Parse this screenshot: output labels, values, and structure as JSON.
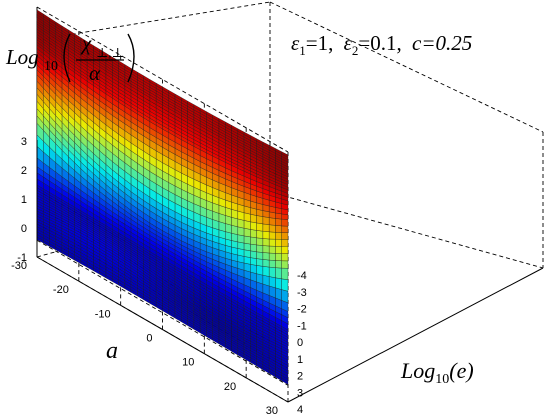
{
  "chart_data": {
    "type": "surface",
    "colormap": "jet",
    "zlabel": {
      "prefix": "Log",
      "subscript": "10",
      "numerator": "χ",
      "numerator_subscript": "⊥,⊥",
      "denominator": "α"
    },
    "annotation": {
      "e1_symbol": "ε",
      "e1_sub": "1",
      "e1_val": "=1,",
      "e2_symbol": "ε",
      "e2_sub": "2",
      "e2_val": "=0.1,",
      "c_text": "c=0.25"
    },
    "xlabel": "a",
    "ylabel": {
      "prefix": "Log",
      "subscript": "10",
      "arg": "(e)"
    },
    "x_ticks": [
      "-30",
      "-20",
      "-10",
      "0",
      "10",
      "20",
      "30"
    ],
    "y_ticks": [
      "-4",
      "-3",
      "-2",
      "-1",
      "0",
      "1",
      "2",
      "3",
      "4"
    ],
    "z_ticks": [
      "-1",
      "0",
      "1",
      "2",
      "3"
    ],
    "xlim": [
      -30,
      30
    ],
    "ylim": [
      -4,
      4
    ],
    "zlim": [
      -1,
      3
    ],
    "grid": true,
    "surface_profile": {
      "log10_e": [
        4,
        2,
        1,
        0.5,
        0,
        -0.5,
        -1,
        -1.5,
        -2,
        -3,
        -4
      ],
      "z_at_a0": [
        -0.35,
        -0.3,
        -0.3,
        -0.1,
        0.1,
        0.55,
        1.3,
        2.0,
        2.45,
        2.7,
        2.75
      ],
      "z_at_a30": [
        -0.4,
        -0.3,
        -0.25,
        0.2,
        1.3,
        1.9,
        2.4,
        2.7,
        2.85,
        2.9,
        2.9
      ]
    }
  }
}
